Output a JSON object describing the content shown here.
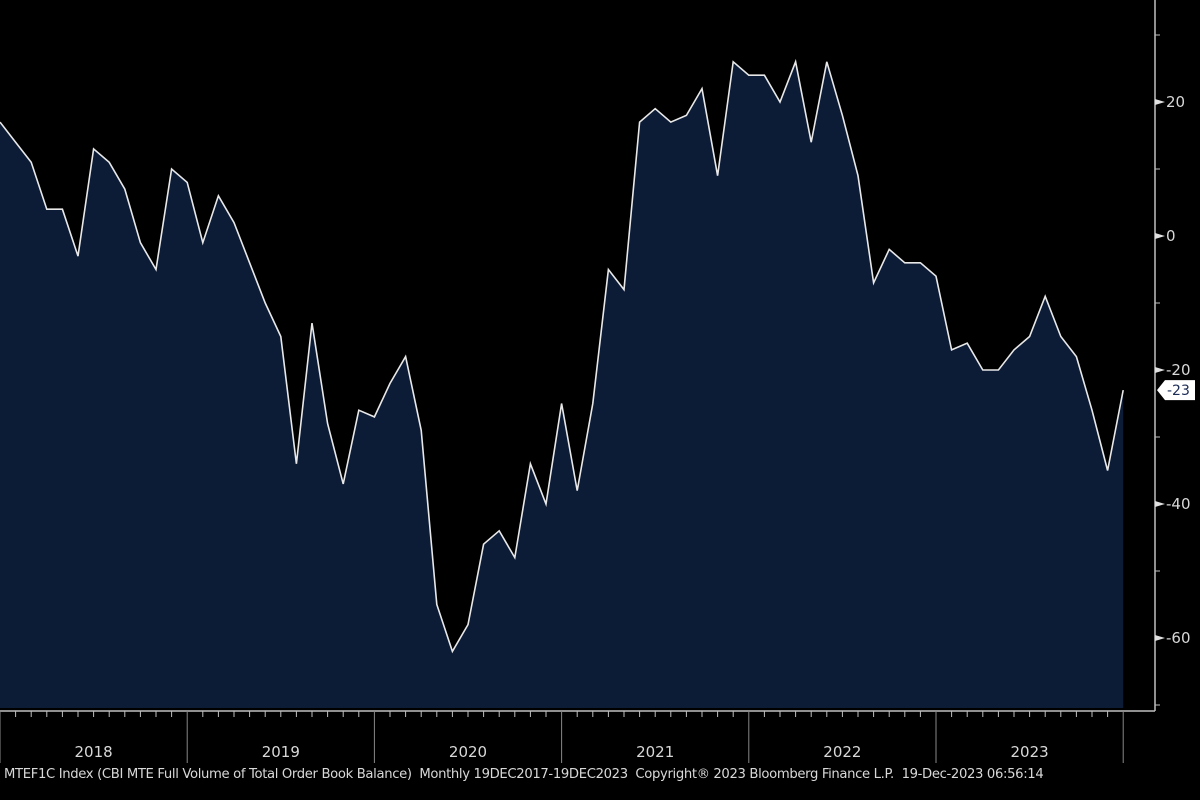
{
  "chart_data": {
    "type": "area",
    "title": "",
    "series_name": "MTEF1C Index",
    "x_start": "2018-01",
    "frequency": "Monthly",
    "values": [
      17,
      14,
      11,
      4,
      4,
      -3,
      13,
      11,
      7,
      -1,
      -5,
      10,
      8,
      -1,
      6,
      2,
      -4,
      -10,
      -15,
      -34,
      -13,
      -28,
      -37,
      -26,
      -27,
      -22,
      -18,
      -29,
      -55,
      -62,
      -58,
      -46,
      -44,
      -48,
      -34,
      -40,
      -25,
      -38,
      -25,
      -5,
      -8,
      17,
      19,
      17,
      18,
      22,
      9,
      26,
      24,
      24,
      20,
      26,
      14,
      26,
      18,
      9,
      -7,
      -2,
      -4,
      -4,
      -6,
      -17,
      -16,
      -20,
      -20,
      -17,
      -15,
      -9,
      -15,
      -18,
      -26,
      -35,
      -23
    ],
    "ylim": [
      -70,
      35
    ],
    "y_ticks": [
      "20",
      "0",
      "-20",
      "-40",
      "-60"
    ],
    "y_tick_values": [
      20,
      0,
      -20,
      -40,
      -60
    ],
    "x_labels": [
      "2018",
      "2019",
      "2020",
      "2021",
      "2022",
      "2023"
    ],
    "last_value_label": "-23",
    "colors": {
      "fill": "#0c1b36",
      "line": "#e8e8e8",
      "background": "#000000",
      "axis": "#bfbfbf"
    }
  },
  "footer": {
    "text": "MTEF1C Index (CBI MTE Full Volume of Total Order Book Balance)  Monthly 19DEC2017-19DEC2023  Copyright® 2023 Bloomberg Finance L.P.  19-Dec-2023 06:56:14"
  }
}
